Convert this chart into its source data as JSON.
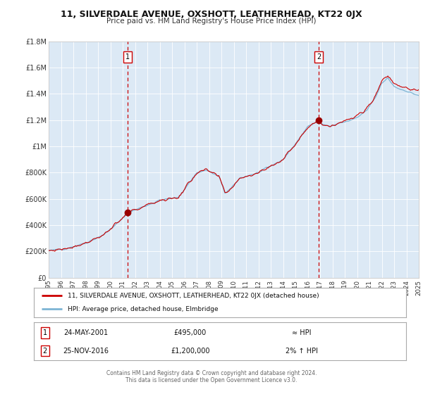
{
  "title": "11, SILVERDALE AVENUE, OXSHOTT, LEATHERHEAD, KT22 0JX",
  "subtitle": "Price paid vs. HM Land Registry's House Price Index (HPI)",
  "bg_color": "#dce9f5",
  "outer_bg_color": "#ffffff",
  "red_line_color": "#cc0000",
  "blue_line_color": "#7cb4d4",
  "sale1_date": 2001.39,
  "sale1_price": 495000,
  "sale2_date": 2016.91,
  "sale2_price": 1200000,
  "vline_color": "#cc0000",
  "marker_color": "#990000",
  "xmin": 1995,
  "xmax": 2025,
  "ymin": 0,
  "ymax": 1800000,
  "yticks": [
    0,
    200000,
    400000,
    600000,
    800000,
    1000000,
    1200000,
    1400000,
    1600000,
    1800000
  ],
  "ytick_labels": [
    "£0",
    "£200K",
    "£400K",
    "£600K",
    "£800K",
    "£1M",
    "£1.2M",
    "£1.4M",
    "£1.6M",
    "£1.8M"
  ],
  "legend_red_label": "11, SILVERDALE AVENUE, OXSHOTT, LEATHERHEAD, KT22 0JX (detached house)",
  "legend_blue_label": "HPI: Average price, detached house, Elmbridge",
  "note1_num": "1",
  "note1_date": "24-MAY-2001",
  "note1_price": "£495,000",
  "note1_hpi": "≈ HPI",
  "note2_num": "2",
  "note2_date": "25-NOV-2016",
  "note2_price": "£1,200,000",
  "note2_hpi": "2% ↑ HPI",
  "footer_line1": "Contains HM Land Registry data © Crown copyright and database right 2024.",
  "footer_line2": "This data is licensed under the Open Government Licence v3.0."
}
